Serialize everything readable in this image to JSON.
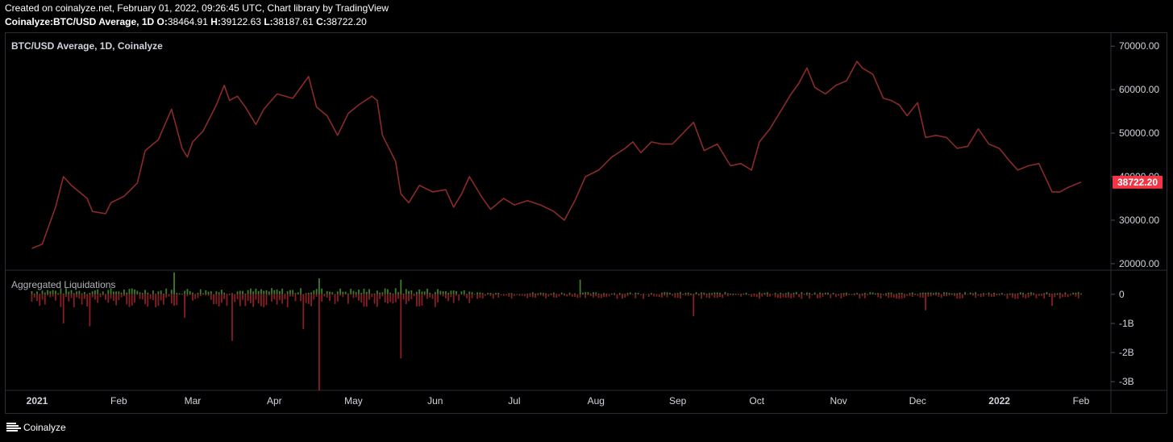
{
  "header": {
    "created_line": "Created on coinalyze.net, February 01, 2022, 09:26:45 UTC, Chart library by TradingView",
    "symbol": "Coinalyze:BTC/USD Average, 1D",
    "o_label": "O:",
    "o_value": "38464.91",
    "h_label": "H:",
    "h_value": "39122.63",
    "l_label": "L:",
    "l_value": "38187.61",
    "c_label": "C:",
    "c_value": "38722.20"
  },
  "footer": {
    "brand": "Coinalyze",
    "logo_icon": "coinalyze-logo-icon"
  },
  "colors": {
    "price_line": "#8b2a2a",
    "last_price_badge": "#f23645",
    "liq_positive": "#3e7d2b",
    "liq_negative": "#8b1e25",
    "axis_text": "#d1d4dc",
    "border": "#2a2e39"
  },
  "chart_data": [
    {
      "type": "line",
      "title": "BTC/USD Average, 1D, Coinalyze",
      "xlabel": "",
      "ylabel": "",
      "ylim": [
        18500,
        73000
      ],
      "y_ticks": [
        "70000.00",
        "60000.00",
        "50000.00",
        "40000.00",
        "30000.00",
        "20000.00"
      ],
      "y_tick_values": [
        70000,
        60000,
        50000,
        40000,
        30000,
        20000
      ],
      "last_value": 38722.2,
      "last_value_label": "38722.20",
      "x_labels": [
        "2021",
        "Feb",
        "Mar",
        "Apr",
        "May",
        "Jun",
        "Jul",
        "Aug",
        "Sep",
        "Oct",
        "Nov",
        "Dec",
        "2022",
        "Feb"
      ],
      "x_label_dates": [
        "2021-01-01",
        "2021-02-01",
        "2021-03-01",
        "2021-04-01",
        "2021-05-01",
        "2021-06-01",
        "2021-07-01",
        "2021-08-01",
        "2021-09-01",
        "2021-10-01",
        "2021-11-01",
        "2021-12-01",
        "2022-01-01",
        "2022-02-01"
      ],
      "x_bold": [
        true,
        false,
        false,
        false,
        false,
        false,
        false,
        false,
        false,
        false,
        false,
        false,
        true,
        false
      ],
      "series": [
        {
          "x": [
            "2020-12-30",
            "2021-01-03",
            "2021-01-08",
            "2021-01-11",
            "2021-01-14",
            "2021-01-20",
            "2021-01-22",
            "2021-01-27",
            "2021-01-29",
            "2021-02-03",
            "2021-02-08",
            "2021-02-11",
            "2021-02-16",
            "2021-02-21",
            "2021-02-23",
            "2021-02-25",
            "2021-02-27",
            "2021-03-01",
            "2021-03-05",
            "2021-03-10",
            "2021-03-13",
            "2021-03-15",
            "2021-03-18",
            "2021-03-21",
            "2021-03-25",
            "2021-03-28",
            "2021-04-02",
            "2021-04-08",
            "2021-04-11",
            "2021-04-14",
            "2021-04-17",
            "2021-04-21",
            "2021-04-25",
            "2021-04-29",
            "2021-05-03",
            "2021-05-08",
            "2021-05-10",
            "2021-05-12",
            "2021-05-17",
            "2021-05-19",
            "2021-05-22",
            "2021-05-26",
            "2021-05-31",
            "2021-06-05",
            "2021-06-08",
            "2021-06-11",
            "2021-06-14",
            "2021-06-19",
            "2021-06-22",
            "2021-06-27",
            "2021-07-01",
            "2021-07-06",
            "2021-07-11",
            "2021-07-16",
            "2021-07-20",
            "2021-07-24",
            "2021-07-28",
            "2021-08-02",
            "2021-08-07",
            "2021-08-12",
            "2021-08-15",
            "2021-08-18",
            "2021-08-22",
            "2021-08-26",
            "2021-08-30",
            "2021-09-03",
            "2021-09-07",
            "2021-09-11",
            "2021-09-16",
            "2021-09-21",
            "2021-09-25",
            "2021-09-29",
            "2021-10-02",
            "2021-10-06",
            "2021-10-10",
            "2021-10-14",
            "2021-10-17",
            "2021-10-20",
            "2021-10-23",
            "2021-10-27",
            "2021-10-31",
            "2021-11-04",
            "2021-11-08",
            "2021-11-10",
            "2021-11-14",
            "2021-11-18",
            "2021-11-21",
            "2021-11-24",
            "2021-11-27",
            "2021-12-01",
            "2021-12-04",
            "2021-12-08",
            "2021-12-12",
            "2021-12-16",
            "2021-12-20",
            "2021-12-24",
            "2021-12-28",
            "2022-01-01",
            "2022-01-05",
            "2022-01-08",
            "2022-01-12",
            "2022-01-16",
            "2022-01-21",
            "2022-01-24",
            "2022-01-27",
            "2022-01-31",
            "2022-02-01"
          ],
          "y": [
            23500,
            24500,
            33000,
            40000,
            38000,
            35000,
            32000,
            31500,
            34000,
            35500,
            38500,
            46000,
            48500,
            55500,
            51000,
            46500,
            44500,
            48000,
            50500,
            56500,
            61000,
            57500,
            58500,
            56000,
            52000,
            55500,
            59000,
            58000,
            60500,
            63000,
            56000,
            54000,
            49500,
            54500,
            56500,
            58500,
            57500,
            49500,
            43500,
            36000,
            34000,
            38000,
            36500,
            37000,
            33000,
            36000,
            40000,
            35000,
            32500,
            35000,
            33500,
            34500,
            33500,
            32000,
            30000,
            34500,
            40000,
            41500,
            44500,
            46500,
            48000,
            45500,
            48000,
            47500,
            47500,
            50000,
            52500,
            46000,
            47500,
            42500,
            43000,
            41500,
            48000,
            51000,
            55000,
            59000,
            61500,
            65000,
            60500,
            59000,
            61000,
            62000,
            66500,
            65000,
            63500,
            58000,
            57500,
            56500,
            54000,
            57000,
            49000,
            49500,
            49000,
            46500,
            47000,
            51000,
            47500,
            46500,
            43500,
            41500,
            42500,
            43000,
            36500,
            36500,
            37500,
            38500,
            38722
          ]
        }
      ]
    },
    {
      "type": "bar",
      "title": "Aggregated Liquidations",
      "xlabel": "",
      "ylabel": "",
      "ylim": [
        -3.3,
        0.8
      ],
      "y_ticks": [
        "0",
        "-1B",
        "-2B",
        "-3B"
      ],
      "y_tick_values": [
        0,
        -1,
        -2,
        -3
      ],
      "unit": "B",
      "spikes": [
        {
          "x": "2021-01-11",
          "value": -1.0
        },
        {
          "x": "2021-01-21",
          "value": -1.1
        },
        {
          "x": "2021-02-22",
          "value": 0.75
        },
        {
          "x": "2021-02-26",
          "value": -0.8
        },
        {
          "x": "2021-03-16",
          "value": -1.6
        },
        {
          "x": "2021-04-12",
          "value": -1.2
        },
        {
          "x": "2021-04-18",
          "value": -3.3
        },
        {
          "x": "2021-04-18",
          "value": 0.55
        },
        {
          "x": "2021-05-19",
          "value": -2.2
        },
        {
          "x": "2021-05-19",
          "value": 0.5
        },
        {
          "x": "2021-07-26",
          "value": 0.5
        },
        {
          "x": "2021-09-07",
          "value": -0.75
        },
        {
          "x": "2021-12-04",
          "value": -0.55
        },
        {
          "x": "2022-01-21",
          "value": -0.4
        }
      ]
    }
  ]
}
